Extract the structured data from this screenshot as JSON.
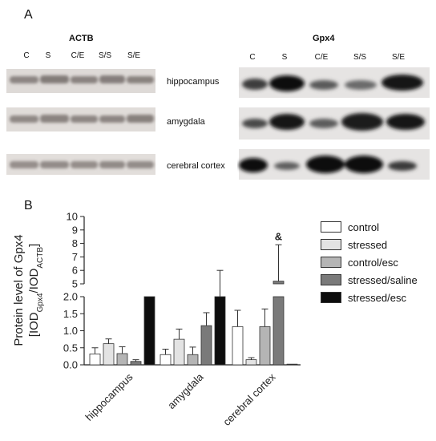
{
  "panelA": {
    "letter": "A",
    "actb": {
      "title": "ACTB",
      "lanes": [
        "C",
        "S",
        "C/E",
        "S/S",
        "S/E"
      ]
    },
    "gpx4": {
      "title": "Gpx4",
      "lanes": [
        "C",
        "S",
        "C/E",
        "S/S",
        "S/E"
      ]
    },
    "regions": [
      "hippocampus",
      "amygdala",
      "cerebral cortex"
    ]
  },
  "panelB": {
    "letter": "B"
  },
  "chart_data": {
    "type": "bar",
    "ylabel_line1": "Protein level of Gpx4",
    "ylabel_line2_parts": [
      "[IOD",
      "Gpx4",
      "/IOD",
      "ACTB",
      "]"
    ],
    "categories": [
      "hippocampus",
      "amygdala",
      "cerebral cortex"
    ],
    "axis_break": true,
    "lower_axis": {
      "range": [
        0,
        2.0
      ],
      "ticks": [
        "0.0",
        "0.5",
        "1.0",
        "1.5",
        "2.0"
      ]
    },
    "upper_axis": {
      "range": [
        5,
        10
      ],
      "ticks": [
        "5",
        "6",
        "7",
        "8",
        "9",
        "10"
      ]
    },
    "series": [
      {
        "name": "control",
        "color": "#ffffff",
        "values": [
          0.32,
          0.3,
          1.12
        ],
        "errors": [
          0.18,
          0.16,
          0.48
        ]
      },
      {
        "name": "stressed",
        "color": "#e3e3e3",
        "values": [
          0.62,
          0.75,
          0.15
        ],
        "errors": [
          0.14,
          0.3,
          0.06
        ]
      },
      {
        "name": "control/esc",
        "color": "#b5b5b5",
        "values": [
          0.33,
          0.3,
          1.12
        ],
        "errors": [
          0.2,
          0.22,
          0.52
        ]
      },
      {
        "name": "stressed/saline",
        "color": "#7a7a7a",
        "values": [
          0.1,
          1.15,
          5.2
        ],
        "errors": [
          0.05,
          0.38,
          2.7
        ]
      },
      {
        "name": "stressed/esc",
        "color": "#0d0d0d",
        "values": [
          2.0,
          2.0,
          0.02
        ],
        "errors": [
          0,
          4.0,
          0
        ]
      }
    ],
    "annotations": [
      {
        "text": "&",
        "category": "cerebral cortex",
        "series": "stressed/saline"
      }
    ]
  }
}
